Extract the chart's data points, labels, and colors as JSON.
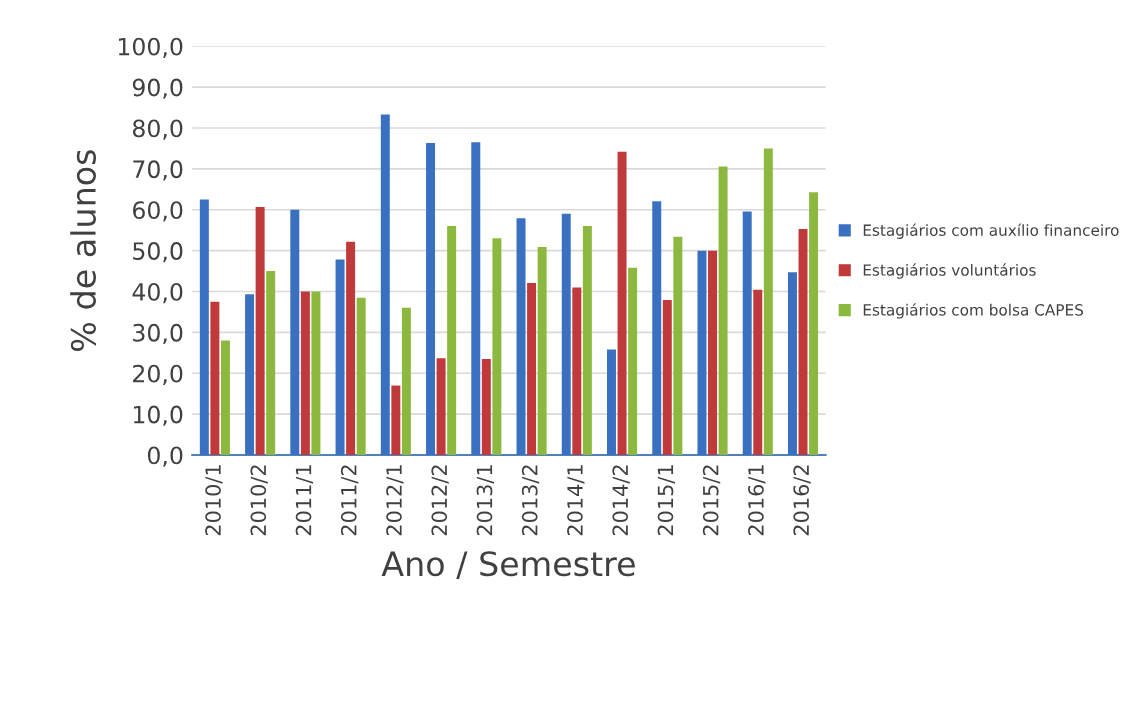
{
  "chart_data": {
    "type": "bar",
    "xlabel": "Ano / Semestre",
    "ylabel": "% de alunos",
    "categories": [
      "2010/1",
      "2010/2",
      "2011/1",
      "2011/2",
      "2012/1",
      "2012/2",
      "2013/1",
      "2013/2",
      "2014/1",
      "2014/2",
      "2015/1",
      "2015/2",
      "2016/1",
      "2016/2"
    ],
    "series": [
      {
        "name": "Estagiários com auxílio financeiro",
        "color": "#3a70c0",
        "values": [
          62.5,
          39.3,
          60,
          47.8,
          83.3,
          76.3,
          76.5,
          57.9,
          59,
          25.8,
          62.1,
          50,
          59.6,
          44.7
        ]
      },
      {
        "name": "Estagiários voluntários",
        "color": "#c0393b",
        "values": [
          37.5,
          60.7,
          40,
          52.2,
          17,
          23.7,
          23.5,
          42.1,
          41,
          74.2,
          37.9,
          50,
          40.4,
          55.3
        ]
      },
      {
        "name": "Estagiários com bolsa CAPES",
        "color": "#8db83f",
        "values": [
          28,
          45,
          40,
          38.5,
          36,
          56,
          53,
          50.9,
          56,
          45.8,
          53.4,
          70.6,
          75,
          64.3
        ]
      }
    ],
    "ylim": [
      0,
      100
    ],
    "yticks": [
      {
        "value": 0,
        "label": "0,0"
      },
      {
        "value": 10,
        "label": "10,0"
      },
      {
        "value": 20,
        "label": "20,0"
      },
      {
        "value": 30,
        "label": "30,0"
      },
      {
        "value": 40,
        "label": "40,0"
      },
      {
        "value": 50,
        "label": "50,0"
      },
      {
        "value": 60,
        "label": "60,0"
      },
      {
        "value": 70,
        "label": "70,0"
      },
      {
        "value": 80,
        "label": "80,0"
      },
      {
        "value": 90,
        "label": "90,0"
      },
      {
        "value": 100,
        "label": "100,0"
      }
    ],
    "grid": "y",
    "legend": "right"
  }
}
